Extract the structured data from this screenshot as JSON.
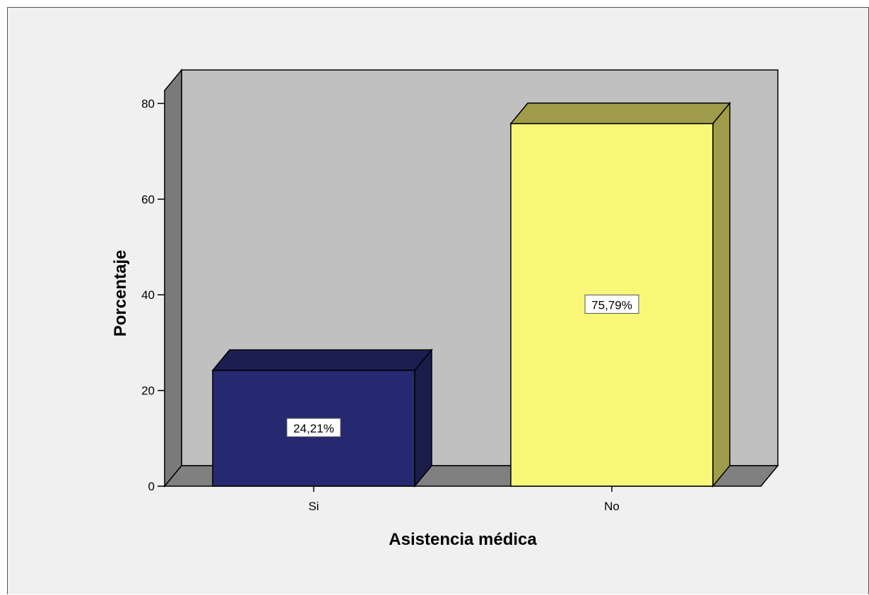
{
  "colors": {
    "frame_background": "#f0f0f0",
    "plot_back_wall": "#c0c0c0",
    "plot_side_wall": "#7a7a7a",
    "plot_floor": "#808080",
    "bar_si_front": "#262870",
    "bar_si_top": "#1c1e52",
    "bar_si_side": "#1a1c4a",
    "bar_no_front": "#f9f777",
    "bar_no_top": "#9e9c4a",
    "bar_no_side": "#9e9c4a",
    "outline": "#000000"
  },
  "chart_data": {
    "type": "bar",
    "style": "3d",
    "categories": [
      "Si",
      "No"
    ],
    "values": [
      24.21,
      75.79
    ],
    "data_labels": [
      "24,21%",
      "75,79%"
    ],
    "xlabel": "Asistencia médica",
    "ylabel": "Porcentaje",
    "ylim": [
      0,
      80
    ],
    "yticks": [
      0,
      20,
      40,
      60,
      80
    ],
    "ytick_labels": [
      "0",
      "20",
      "40",
      "60",
      "80"
    ],
    "grid": false,
    "legend": "none"
  }
}
